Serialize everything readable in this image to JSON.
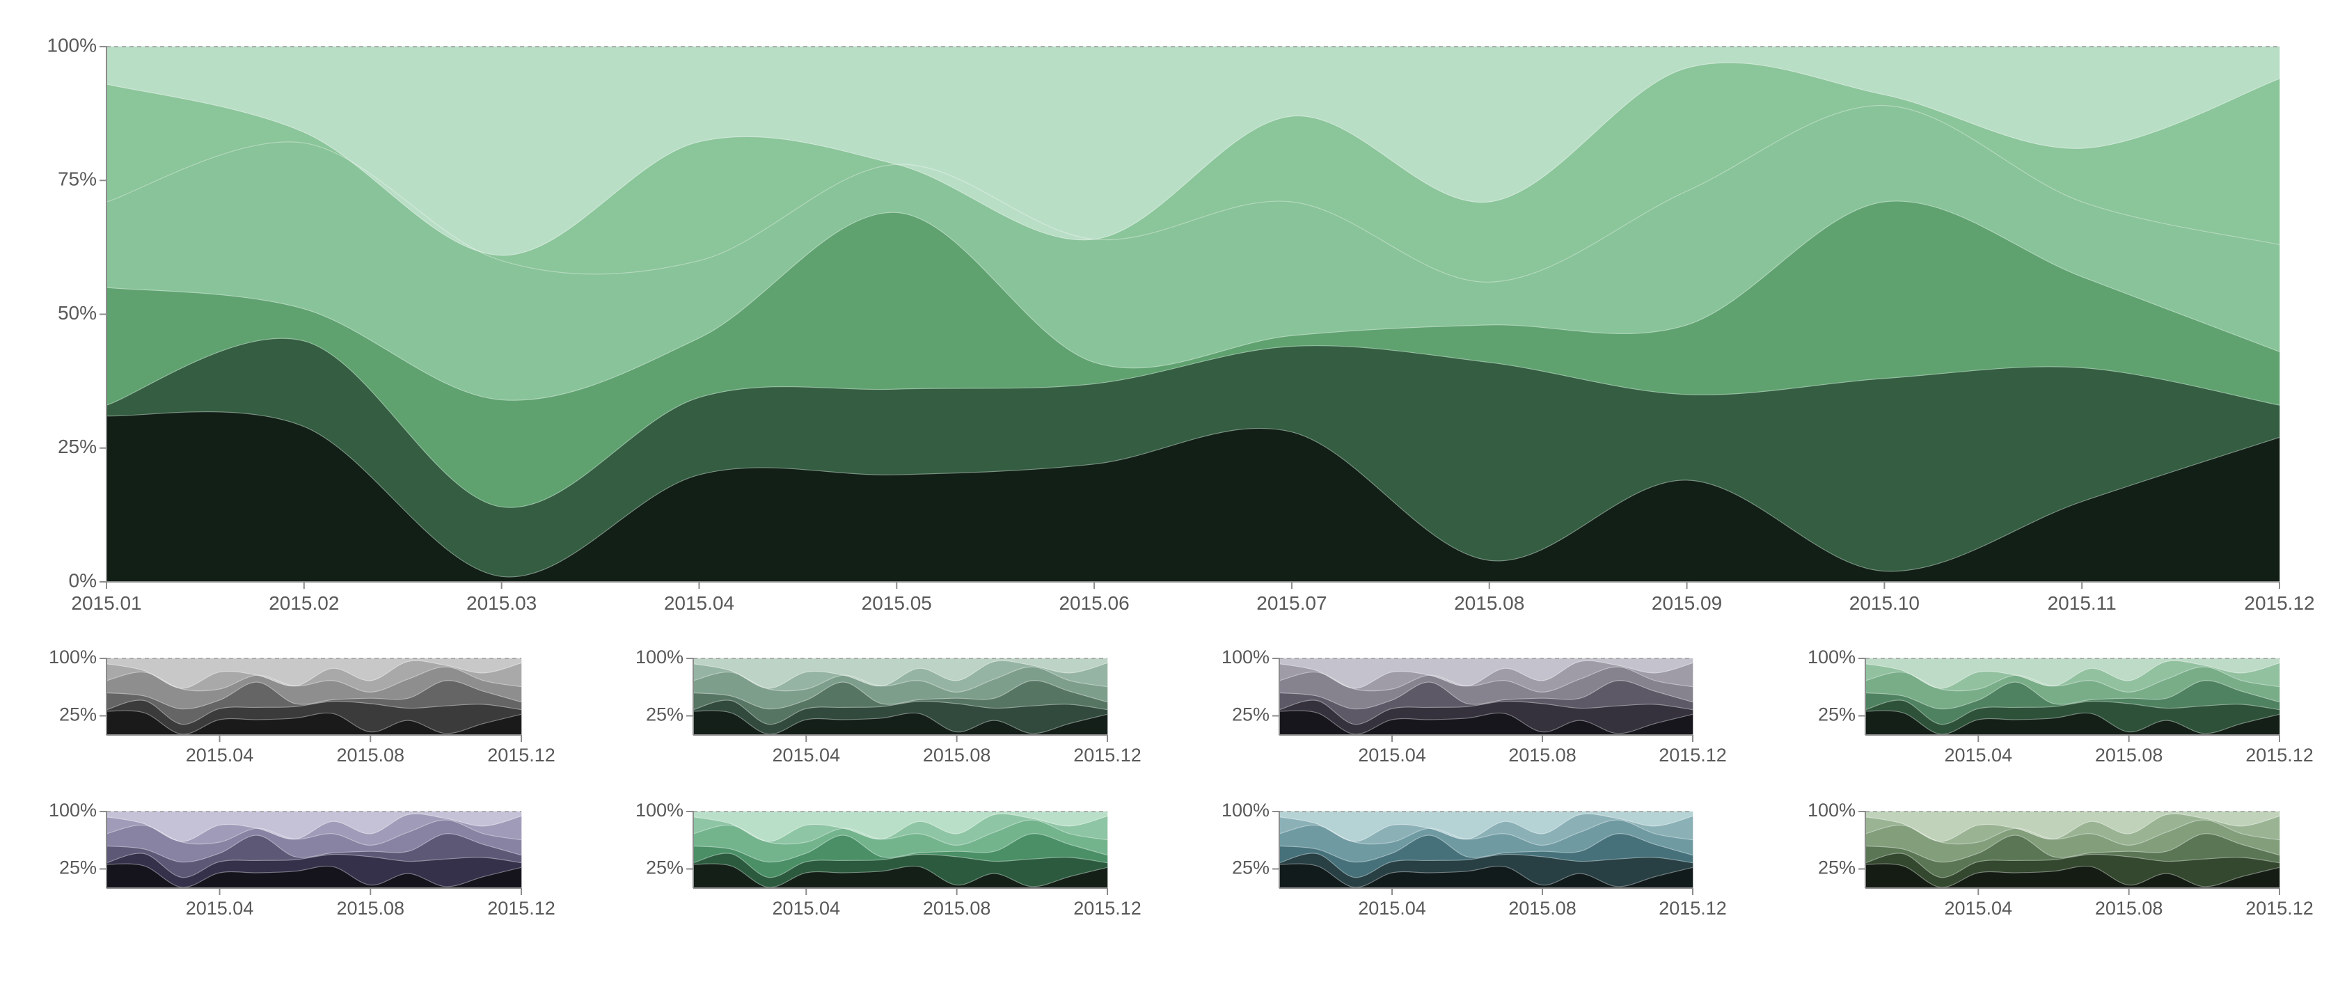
{
  "chart_data": {
    "type": "area",
    "stacking": "percent",
    "curve": "smooth",
    "categories": [
      "2015.01",
      "2015.02",
      "2015.03",
      "2015.04",
      "2015.05",
      "2015.06",
      "2015.07",
      "2015.08",
      "2015.09",
      "2015.10",
      "2015.11",
      "2015.12"
    ],
    "series": [
      {
        "values": [
          31,
          29,
          1,
          18,
          20,
          22,
          28,
          4,
          19,
          2,
          15,
          27
        ]
      },
      {
        "values": [
          2,
          16,
          13,
          13,
          16,
          15,
          16,
          37,
          16,
          36,
          25,
          6
        ]
      },
      {
        "values": [
          22,
          6,
          20,
          10,
          33,
          4,
          2,
          7,
          13,
          33,
          17,
          10
        ]
      },
      {
        "values": [
          16,
          31,
          26,
          13,
          9,
          23,
          25,
          8,
          25,
          18,
          14,
          20
        ]
      },
      {
        "values": [
          22,
          2,
          1,
          20,
          0,
          0,
          16,
          15,
          23,
          2,
          10,
          31
        ]
      },
      {
        "values": [
          7,
          16,
          39,
          16,
          22,
          36,
          13,
          29,
          4,
          9,
          19,
          6
        ]
      }
    ],
    "main": {
      "y_ticks": [
        "0%",
        "25%",
        "50%",
        "75%",
        "100%"
      ],
      "x_ticks": [
        "2015.01",
        "2015.02",
        "2015.03",
        "2015.04",
        "2015.05",
        "2015.06",
        "2015.07",
        "2015.08",
        "2015.09",
        "2015.10",
        "2015.11",
        "2015.12"
      ],
      "ylim": [
        0,
        100
      ],
      "palette": [
        "#121f17",
        "#345d41",
        "#5fa270",
        "#89c399",
        "#8bc59a",
        "#b9dec6"
      ]
    },
    "small_multiples": {
      "y_ticks": [
        "25%",
        "100%"
      ],
      "x_ticks": [
        "2015.04",
        "2015.08",
        "2015.12"
      ],
      "palettes": [
        [
          "#1a1a1a",
          "#3b3b3b",
          "#656565",
          "#8e8e8e",
          "#a9a9a9",
          "#c8c8c8"
        ],
        [
          "#151f1a",
          "#314a3d",
          "#577563",
          "#7e9e8c",
          "#96b4a3",
          "#bdd3c5"
        ],
        [
          "#18161d",
          "#35323d",
          "#5d5966",
          "#86838f",
          "#9f9ca8",
          "#c4c2cc"
        ],
        [
          "#141f18",
          "#2e5239",
          "#4f8260",
          "#78ad88",
          "#92c1a0",
          "#bddbc6"
        ],
        [
          "#15141d",
          "#35314a",
          "#5e5877",
          "#8882a3",
          "#a09bb8",
          "#c5c2d7"
        ],
        [
          "#131f17",
          "#2c5a3e",
          "#4a8f66",
          "#73b48d",
          "#8ec5a4",
          "#b9dfc8"
        ],
        [
          "#121b1c",
          "#283f44",
          "#46717a",
          "#6f9aa2",
          "#8bb1b7",
          "#b5d2d5"
        ],
        [
          "#151c14",
          "#34472f",
          "#5a7654",
          "#829e7b",
          "#9ab493",
          "#c0d2ba"
        ]
      ]
    }
  }
}
